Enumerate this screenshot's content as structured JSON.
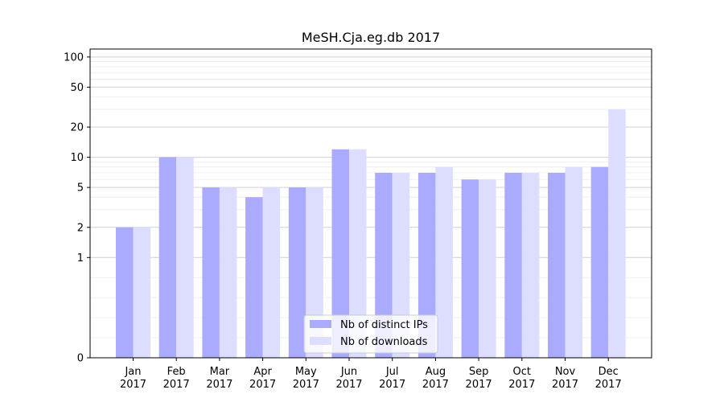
{
  "chart_data": {
    "type": "bar",
    "title": "MeSH.Cja.eg.db 2017",
    "xlabel": "",
    "ylabel": "",
    "y_scale": "symlog",
    "y_ticks": [
      0,
      1,
      2,
      5,
      10,
      20,
      50,
      100
    ],
    "y_tick_labels": [
      "0",
      "1",
      "2",
      "5",
      "10",
      "20",
      "50",
      "100"
    ],
    "ylim": [
      0,
      120
    ],
    "grid": "horizontal, major and minor",
    "legend_position": "bottom-center",
    "categories": [
      [
        "Jan",
        "2017"
      ],
      [
        "Feb",
        "2017"
      ],
      [
        "Mar",
        "2017"
      ],
      [
        "Apr",
        "2017"
      ],
      [
        "May",
        "2017"
      ],
      [
        "Jun",
        "2017"
      ],
      [
        "Jul",
        "2017"
      ],
      [
        "Aug",
        "2017"
      ],
      [
        "Sep",
        "2017"
      ],
      [
        "Oct",
        "2017"
      ],
      [
        "Nov",
        "2017"
      ],
      [
        "Dec",
        "2017"
      ]
    ],
    "series": [
      {
        "name": "Nb of distinct IPs",
        "color": "#aaaaff",
        "values": [
          2,
          10,
          5,
          4,
          5,
          12,
          7,
          7,
          6,
          7,
          7,
          8
        ]
      },
      {
        "name": "Nb of downloads",
        "color": "#ddddff",
        "values": [
          2,
          10,
          5,
          5,
          5,
          12,
          7,
          8,
          6,
          7,
          8,
          30
        ]
      }
    ]
  }
}
